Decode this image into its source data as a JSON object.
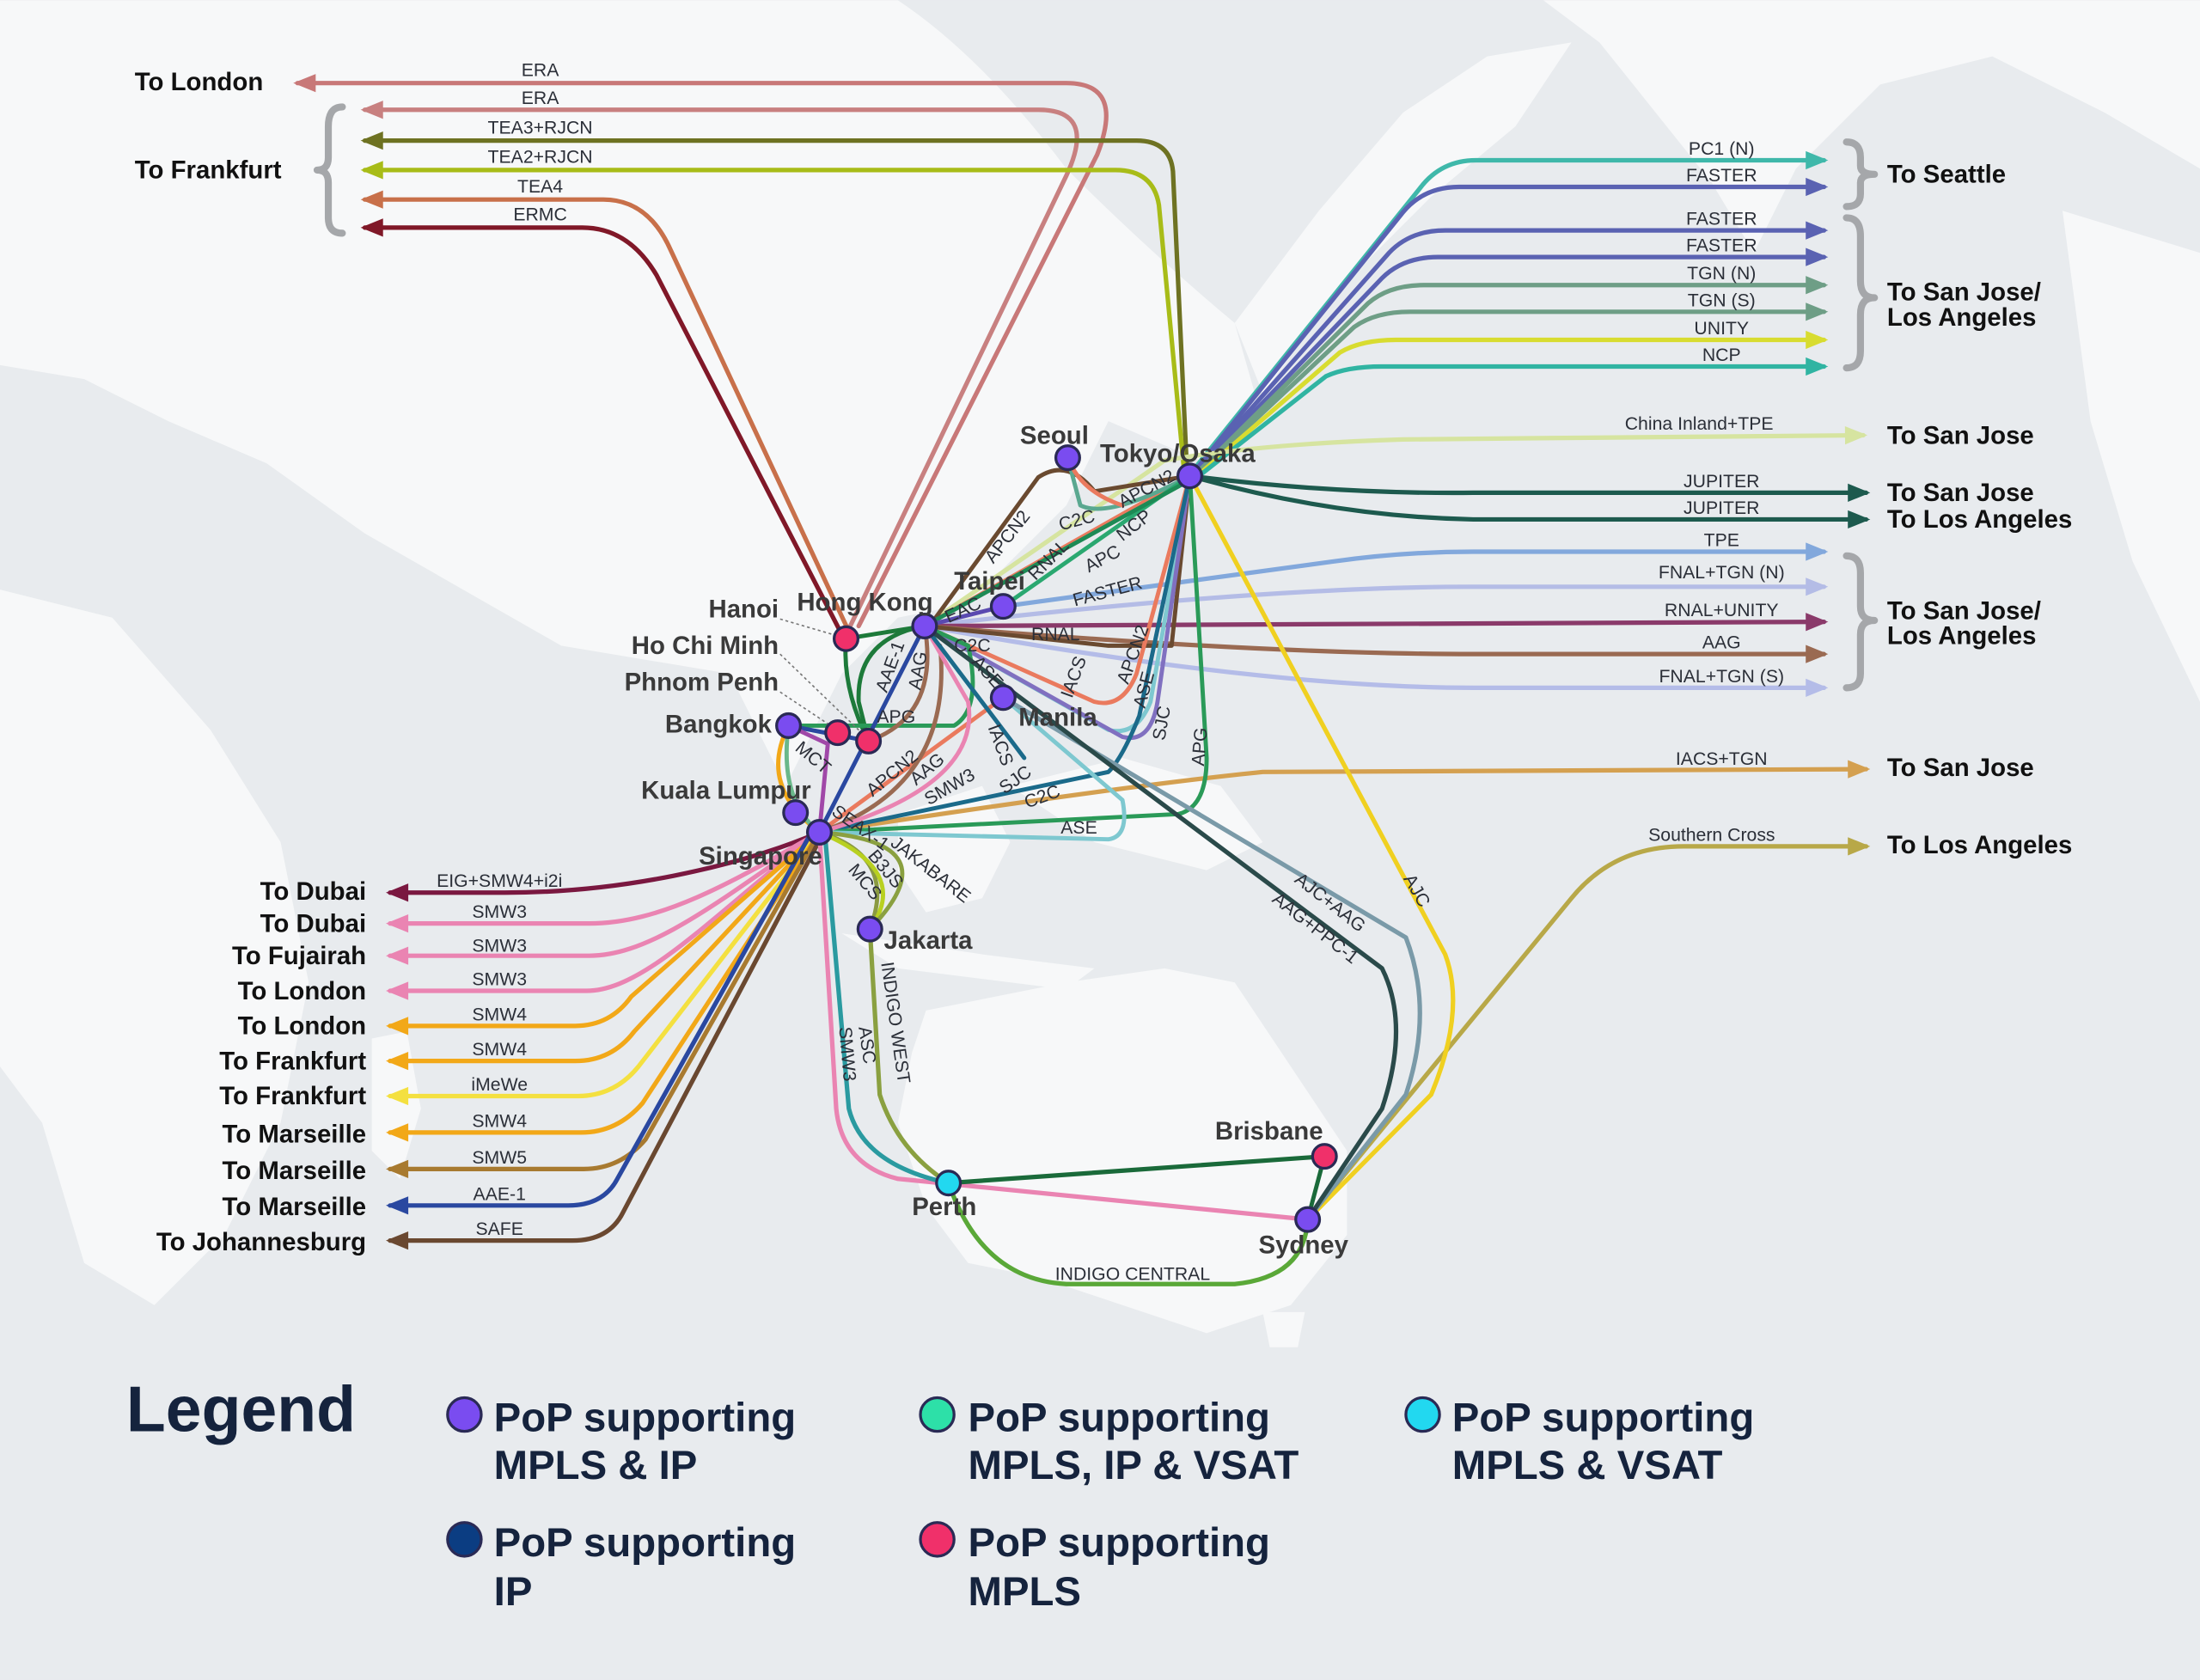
{
  "colors": {
    "mpls_ip": "#7a4cf0",
    "ip": "#0b3d82",
    "mpls_ip_vsat": "#2de0a8",
    "mpls": "#f0306a",
    "mpls_vsat": "#22d8f0"
  },
  "nodes": {
    "seoul": "Seoul",
    "tokyo": "Tokyo/Osaka",
    "taipei": "Taipei",
    "hongkong": "Hong Kong",
    "manila": "Manila",
    "hanoi": "Hanoi",
    "hochiminh": "Ho Chi Minh",
    "phnompenh": "Phnom Penh",
    "bangkok": "Bangkok",
    "kualalumpur": "Kuala Lumpur",
    "singapore": "Singapore",
    "jakarta": "Jakarta",
    "perth": "Perth",
    "brisbane": "Brisbane",
    "sydney": "Sydney"
  },
  "cables": [
    {
      "label": "ERA",
      "color": "#c87878"
    },
    {
      "label": "ERA",
      "color": "#c88080"
    },
    {
      "label": "TEA3+RJCN",
      "color": "#6e7222"
    },
    {
      "label": "TEA2+RJCN",
      "color": "#a8bc18"
    },
    {
      "label": "TEA4",
      "color": "#c8704a"
    },
    {
      "label": "ERMC",
      "color": "#801828"
    },
    {
      "label": "PC1 (N)",
      "color": "#3fb8aa"
    },
    {
      "label": "FASTER",
      "color": "#5a62b2"
    },
    {
      "label": "FASTER",
      "color": "#5a62b2"
    },
    {
      "label": "FASTER",
      "color": "#5a62b2"
    },
    {
      "label": "TGN (N)",
      "color": "#6e9e86"
    },
    {
      "label": "TGN (S)",
      "color": "#6e9e86"
    },
    {
      "label": "UNITY",
      "color": "#d8dc30"
    },
    {
      "label": "NCP",
      "color": "#30b4a2"
    },
    {
      "label": "China Inland+TPE",
      "color": "#d6e4a0"
    },
    {
      "label": "JUPITER",
      "color": "#1d5a4e"
    },
    {
      "label": "JUPITER",
      "color": "#1d5a4e"
    },
    {
      "label": "TPE",
      "color": "#82a8dc"
    },
    {
      "label": "FNAL+TGN (N)",
      "color": "#b4bce6"
    },
    {
      "label": "RNAL+UNITY",
      "color": "#8a3a6a"
    },
    {
      "label": "AAG",
      "color": "#9a6a52"
    },
    {
      "label": "FNAL+TGN (S)",
      "color": "#b4bce8"
    },
    {
      "label": "IACS+TGN",
      "color": "#d4a050"
    },
    {
      "label": "Southern Cross",
      "color": "#b8a848"
    },
    {
      "label": "EIG+SMW4+i2i",
      "color": "#7a1840"
    },
    {
      "label": "SMW3",
      "color": "#ea84b2"
    },
    {
      "label": "SMW3",
      "color": "#ea84b2"
    },
    {
      "label": "SMW3",
      "color": "#ea84b2"
    },
    {
      "label": "SMW4",
      "color": "#f2a818"
    },
    {
      "label": "SMW4",
      "color": "#f2a818"
    },
    {
      "label": "iMeWe",
      "color": "#f4e040"
    },
    {
      "label": "SMW4",
      "color": "#f2a818"
    },
    {
      "label": "SMW5",
      "color": "#a87a30"
    },
    {
      "label": "AAE-1",
      "color": "#2a48a0"
    },
    {
      "label": "SAFE",
      "color": "#6a4830"
    }
  ],
  "destinations": {
    "london": "To London",
    "frankfurt": "To Frankfurt",
    "seattle": "To Seattle",
    "sj_la_1": "To San Jose/\nLos Angeles",
    "sj_la_1_line1": "To San Jose/",
    "sj_la_1_line2": "Los Angeles",
    "san_jose_a": "To San Jose",
    "san_jose_b": "To San Jose",
    "los_angeles_a": "To Los Angeles",
    "sj_la_2_line1": "To San Jose/",
    "sj_la_2_line2": "Los Angeles",
    "san_jose_c": "To San Jose",
    "los_angeles_b": "To Los Angeles",
    "left": [
      "To Dubai",
      "To Dubai",
      "To Fujairah",
      "To London",
      "To London",
      "To Frankfurt",
      "To Frankfurt",
      "To Marseille",
      "To Marseille",
      "To Marseille",
      "To Johannesburg"
    ]
  },
  "inner_labels": [
    "APCN2",
    "C2C",
    "APCN2",
    "RNAL",
    "NCP",
    "APC",
    "FASTER",
    "EAC",
    "C2C",
    "RNAL",
    "IACS",
    "APCN2",
    "ASE",
    "SJC",
    "APG",
    "AAE-1",
    "AAG",
    "APG",
    "ASE",
    "IACS",
    "SJC",
    "C2C",
    "ASE",
    "MCT",
    "APCN2",
    "AAG",
    "SMW3",
    "SEAX-1",
    "JAKABARE",
    "B3JS",
    "MCS",
    "INDIGO WEST",
    "ASC",
    "SMW3",
    "INDIGO CENTRAL",
    "AJC+AAG",
    "AAG+PPC-1",
    "AJC"
  ],
  "legend": {
    "title": "Legend",
    "items": [
      {
        "line1": "PoP supporting",
        "line2": "MPLS & IP",
        "color": "#7a4cf0"
      },
      {
        "line1": "PoP supporting",
        "line2": "MPLS, IP & VSAT",
        "color": "#2de0a8"
      },
      {
        "line1": "PoP supporting",
        "line2": "MPLS & VSAT",
        "color": "#22d8f0"
      },
      {
        "line1": "PoP supporting",
        "line2": "IP",
        "color": "#0b3d82"
      },
      {
        "line1": "PoP supporting",
        "line2": "MPLS",
        "color": "#f0306a"
      }
    ]
  }
}
